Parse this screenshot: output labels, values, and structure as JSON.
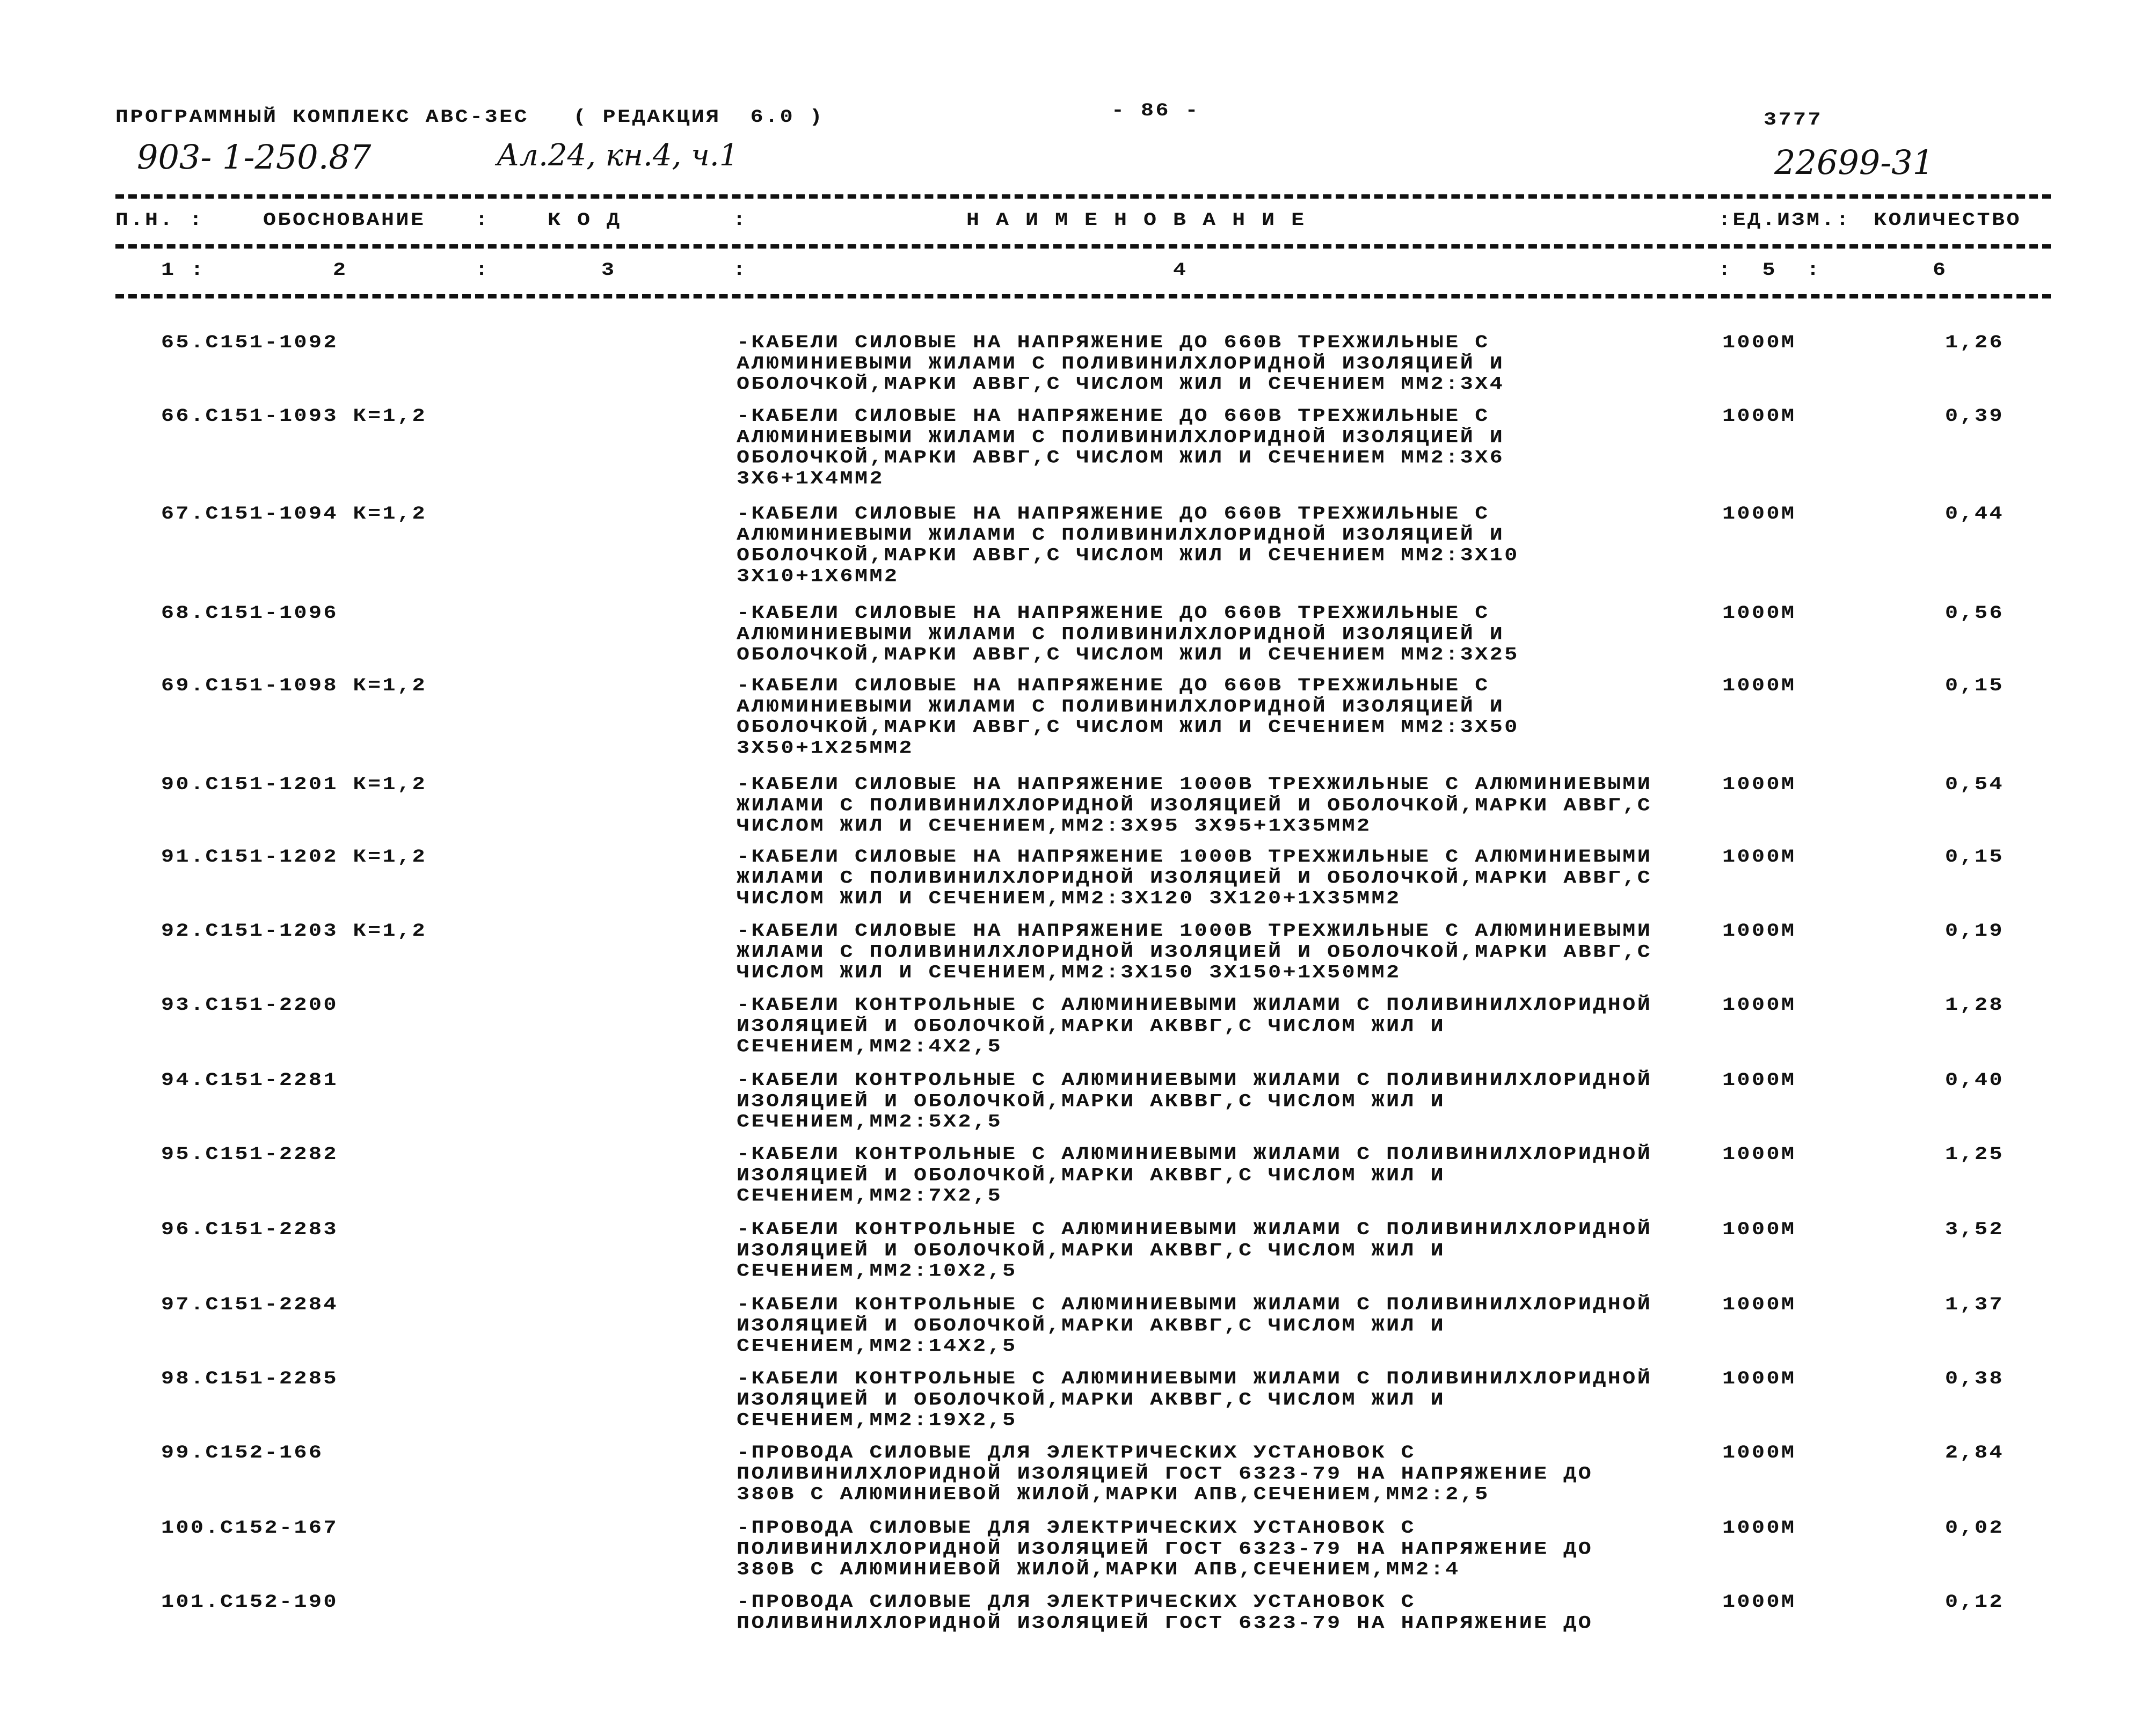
{
  "header": {
    "program": "ПРОГРАММНЫЙ КОМПЛЕКС АВС-3ЕС   ( РЕДАКЦИЯ  6.0 )",
    "page_number": "- 86 -",
    "code_right": "3777",
    "handwritten_project": "903- 1-250.87",
    "handwritten_volume": "Ал.24, кн.4, ч.1",
    "handwritten_number": "22699-31"
  },
  "table": {
    "columns": [
      {
        "label": "П.Н. :",
        "num": "1 :"
      },
      {
        "label": "ОБОСНОВАНИЕ",
        "num": "2"
      },
      {
        "label": ":",
        "num": ":"
      },
      {
        "label": "К О Д",
        "num": "3"
      },
      {
        "label": ":",
        "num": ":"
      },
      {
        "label": "Н А И М Е Н О В А Н И Е",
        "num": "4"
      },
      {
        "label": ":ЕД.ИЗМ.:",
        "num": ":  5  :"
      },
      {
        "label": "КОЛИЧЕСТВО",
        "num": "6"
      }
    ],
    "rows": [
      {
        "code": "65.С151-1092",
        "desc": [
          "-КАБЕЛИ СИЛОВЫЕ НА НАПРЯЖЕНИЕ ДО 660В ТРЕХЖИЛЬНЫЕ С",
          "АЛЮМИНИЕВЫМИ ЖИЛАМИ С ПОЛИВИНИЛХЛОРИДНОЙ ИЗОЛЯЦИЕЙ И",
          "ОБОЛОЧКОЙ,МАРКИ АВВГ,С ЧИСЛОМ ЖИЛ И СЕЧЕНИЕМ ММ2:3Х4"
        ],
        "unit": "1000М",
        "qty": "1,26"
      },
      {
        "code": "66.С151-1093 К=1,2",
        "desc": [
          "-КАБЕЛИ СИЛОВЫЕ НА НАПРЯЖЕНИЕ ДО 660В ТРЕХЖИЛЬНЫЕ С",
          "АЛЮМИНИЕВЫМИ ЖИЛАМИ С ПОЛИВИНИЛХЛОРИДНОЙ ИЗОЛЯЦИЕЙ И",
          "ОБОЛОЧКОЙ,МАРКИ АВВГ,С ЧИСЛОМ ЖИЛ И СЕЧЕНИЕМ ММ2:3Х6",
          "3Х6+1Х4ММ2"
        ],
        "unit": "1000М",
        "qty": "0,39"
      },
      {
        "code": "67.С151-1094 К=1,2",
        "desc": [
          "-КАБЕЛИ СИЛОВЫЕ НА НАПРЯЖЕНИЕ ДО 660В ТРЕХЖИЛЬНЫЕ С",
          "АЛЮМИНИЕВЫМИ ЖИЛАМИ С ПОЛИВИНИЛХЛОРИДНОЙ ИЗОЛЯЦИЕЙ И",
          "ОБОЛОЧКОЙ,МАРКИ АВВГ,С ЧИСЛОМ ЖИЛ И СЕЧЕНИЕМ ММ2:3Х10",
          "3Х10+1Х6ММ2"
        ],
        "unit": "1000М",
        "qty": "0,44"
      },
      {
        "code": "68.С151-1096",
        "desc": [
          "-КАБЕЛИ СИЛОВЫЕ НА НАПРЯЖЕНИЕ ДО 660В ТРЕХЖИЛЬНЫЕ С",
          "АЛЮМИНИЕВЫМИ ЖИЛАМИ С ПОЛИВИНИЛХЛОРИДНОЙ ИЗОЛЯЦИЕЙ И",
          "ОБОЛОЧКОЙ,МАРКИ АВВГ,С ЧИСЛОМ ЖИЛ И СЕЧЕНИЕМ ММ2:3Х25"
        ],
        "unit": "1000М",
        "qty": "0,56"
      },
      {
        "code": "69.С151-1098 К=1,2",
        "desc": [
          "-КАБЕЛИ СИЛОВЫЕ НА НАПРЯЖЕНИЕ ДО 660В ТРЕХЖИЛЬНЫЕ С",
          "АЛЮМИНИЕВЫМИ ЖИЛАМИ С ПОЛИВИНИЛХЛОРИДНОЙ ИЗОЛЯЦИЕЙ И",
          "ОБОЛОЧКОЙ,МАРКИ АВВГ,С ЧИСЛОМ ЖИЛ И СЕЧЕНИЕМ ММ2:3Х50",
          "3Х50+1Х25ММ2"
        ],
        "unit": "1000М",
        "qty": "0,15"
      },
      {
        "code": "90.С151-1201 К=1,2",
        "desc": [
          "-КАБЕЛИ СИЛОВЫЕ НА НАПРЯЖЕНИЕ 1000В ТРЕХЖИЛЬНЫЕ С АЛЮМИНИЕВЫМИ",
          "ЖИЛАМИ С ПОЛИВИНИЛХЛОРИДНОЙ ИЗОЛЯЦИЕЙ И ОБОЛОЧКОЙ,МАРКИ АВВГ,С",
          "ЧИСЛОМ ЖИЛ И СЕЧЕНИЕМ,ММ2:3Х95 3Х95+1Х35ММ2"
        ],
        "unit": "1000М",
        "qty": "0,54"
      },
      {
        "code": "91.С151-1202 К=1,2",
        "desc": [
          "-КАБЕЛИ СИЛОВЫЕ НА НАПРЯЖЕНИЕ 1000В ТРЕХЖИЛЬНЫЕ С АЛЮМИНИЕВЫМИ",
          "ЖИЛАМИ С ПОЛИВИНИЛХЛОРИДНОЙ ИЗОЛЯЦИЕЙ И ОБОЛОЧКОЙ,МАРКИ АВВГ,С",
          "ЧИСЛОМ ЖИЛ И СЕЧЕНИЕМ,ММ2:3Х120 3Х120+1Х35ММ2"
        ],
        "unit": "1000М",
        "qty": "0,15"
      },
      {
        "code": "92.С151-1203 К=1,2",
        "desc": [
          "-КАБЕЛИ СИЛОВЫЕ НА НАПРЯЖЕНИЕ 1000В ТРЕХЖИЛЬНЫЕ С АЛЮМИНИЕВЫМИ",
          "ЖИЛАМИ С ПОЛИВИНИЛХЛОРИДНОЙ ИЗОЛЯЦИЕЙ И ОБОЛОЧКОЙ,МАРКИ АВВГ,С",
          "ЧИСЛОМ ЖИЛ И СЕЧЕНИЕМ,ММ2:3Х150 3Х150+1Х50ММ2"
        ],
        "unit": "1000М",
        "qty": "0,19"
      },
      {
        "code": "93.С151-2200",
        "desc": [
          "-КАБЕЛИ КОНТРОЛЬНЫЕ С АЛЮМИНИЕВЫМИ ЖИЛАМИ С ПОЛИВИНИЛХЛОРИДНОЙ",
          "ИЗОЛЯЦИЕЙ И ОБОЛОЧКОЙ,МАРКИ АКВВГ,С ЧИСЛОМ ЖИЛ И",
          "СЕЧЕНИЕМ,ММ2:4Х2,5"
        ],
        "unit": "1000М",
        "qty": "1,28"
      },
      {
        "code": "94.С151-2281",
        "desc": [
          "-КАБЕЛИ КОНТРОЛЬНЫЕ С АЛЮМИНИЕВЫМИ ЖИЛАМИ С ПОЛИВИНИЛХЛОРИДНОЙ",
          "ИЗОЛЯЦИЕЙ И ОБОЛОЧКОЙ,МАРКИ АКВВГ,С ЧИСЛОМ ЖИЛ И",
          "СЕЧЕНИЕМ,ММ2:5Х2,5"
        ],
        "unit": "1000М",
        "qty": "0,40"
      },
      {
        "code": "95.С151-2282",
        "desc": [
          "-КАБЕЛИ КОНТРОЛЬНЫЕ С АЛЮМИНИЕВЫМИ ЖИЛАМИ С ПОЛИВИНИЛХЛОРИДНОЙ",
          "ИЗОЛЯЦИЕЙ И ОБОЛОЧКОЙ,МАРКИ АКВВГ,С ЧИСЛОМ ЖИЛ И",
          "СЕЧЕНИЕМ,ММ2:7Х2,5"
        ],
        "unit": "1000М",
        "qty": "1,25"
      },
      {
        "code": "96.С151-2283",
        "desc": [
          "-КАБЕЛИ КОНТРОЛЬНЫЕ С АЛЮМИНИЕВЫМИ ЖИЛАМИ С ПОЛИВИНИЛХЛОРИДНОЙ",
          "ИЗОЛЯЦИЕЙ И ОБОЛОЧКОЙ,МАРКИ АКВВГ,С ЧИСЛОМ ЖИЛ И",
          "СЕЧЕНИЕМ,ММ2:10Х2,5"
        ],
        "unit": "1000М",
        "qty": "3,52"
      },
      {
        "code": "97.С151-2284",
        "desc": [
          "-КАБЕЛИ КОНТРОЛЬНЫЕ С АЛЮМИНИЕВЫМИ ЖИЛАМИ С ПОЛИВИНИЛХЛОРИДНОЙ",
          "ИЗОЛЯЦИЕЙ И ОБОЛОЧКОЙ,МАРКИ АКВВГ,С ЧИСЛОМ ЖИЛ И",
          "СЕЧЕНИЕМ,ММ2:14Х2,5"
        ],
        "unit": "1000М",
        "qty": "1,37"
      },
      {
        "code": "98.С151-2285",
        "desc": [
          "-КАБЕЛИ КОНТРОЛЬНЫЕ С АЛЮМИНИЕВЫМИ ЖИЛАМИ С ПОЛИВИНИЛХЛОРИДНОЙ",
          "ИЗОЛЯЦИЕЙ И ОБОЛОЧКОЙ,МАРКИ АКВВГ,С ЧИСЛОМ ЖИЛ И",
          "СЕЧЕНИЕМ,ММ2:19Х2,5"
        ],
        "unit": "1000М",
        "qty": "0,38"
      },
      {
        "code": "99.С152-166",
        "desc": [
          "-ПРОВОДА СИЛОВЫЕ ДЛЯ ЭЛЕКТРИЧЕСКИХ УСТАНОВОК С",
          "ПОЛИВИНИЛХЛОРИДНОЙ ИЗОЛЯЦИЕЙ ГОСТ 6323-79 НА НАПРЯЖЕНИЕ ДО",
          "380В С АЛЮМИНИЕВОЙ ЖИЛОЙ,МАРКИ АПВ,СЕЧЕНИЕМ,ММ2:2,5"
        ],
        "unit": "1000М",
        "qty": "2,84"
      },
      {
        "code": "100.С152-167",
        "desc": [
          "-ПРОВОДА СИЛОВЫЕ ДЛЯ ЭЛЕКТРИЧЕСКИХ УСТАНОВОК С",
          "ПОЛИВИНИЛХЛОРИДНОЙ ИЗОЛЯЦИЕЙ ГОСТ 6323-79 НА НАПРЯЖЕНИЕ ДО",
          "380В С АЛЮМИНИЕВОЙ ЖИЛОЙ,МАРКИ АПВ,СЕЧЕНИЕМ,ММ2:4"
        ],
        "unit": "1000М",
        "qty": "0,02"
      },
      {
        "code": "101.С152-190",
        "desc": [
          "-ПРОВОДА СИЛОВЫЕ ДЛЯ ЭЛЕКТРИЧЕСКИХ УСТАНОВОК С",
          "ПОЛИВИНИЛХЛОРИДНОЙ ИЗОЛЯЦИЕЙ ГОСТ 6323-79 НА НАПРЯЖЕНИЕ ДО"
        ],
        "unit": "1000М",
        "qty": "0,12"
      }
    ]
  }
}
